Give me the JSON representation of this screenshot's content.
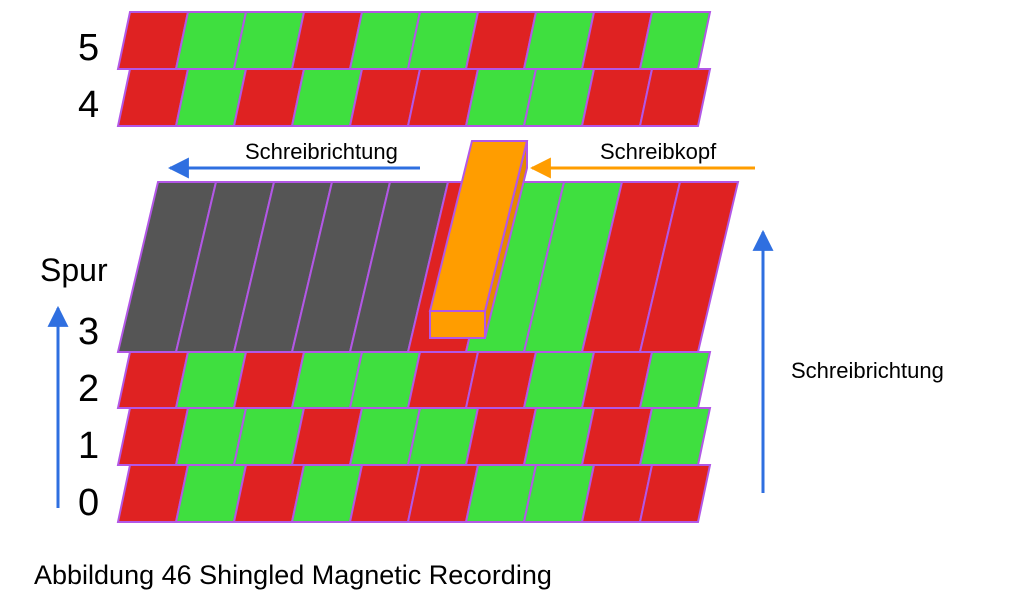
{
  "colors": {
    "bit_red": "#df2222",
    "bit_green": "#3fdf3f",
    "bit_written": "#555555",
    "bit_border": "#b257e6",
    "head_fill": "#ff9d00",
    "head_border": "#b257e6",
    "arrow_blue": "#2f6fe0",
    "arrow_orange": "#ff9d00"
  },
  "track_labels": [
    "0",
    "1",
    "2",
    "3",
    "4",
    "5"
  ],
  "axis_label": "Spur",
  "write_direction_label": "Schreibrichtung",
  "write_head_label": "Schreibkopf",
  "write_direction_label_right": "Schreibrichtung",
  "caption": "Abbildung 46 Shingled Magnetic Recording",
  "tracks": [
    {
      "track": "0",
      "bits": [
        "r",
        "g",
        "r",
        "g",
        "r",
        "r",
        "g",
        "g",
        "r",
        "r"
      ]
    },
    {
      "track": "1",
      "bits": [
        "r",
        "g",
        "g",
        "r",
        "g",
        "g",
        "r",
        "g",
        "r",
        "g"
      ]
    },
    {
      "track": "2",
      "bits": [
        "r",
        "g",
        "r",
        "g",
        "g",
        "r",
        "r",
        "g",
        "r",
        "g"
      ]
    },
    {
      "track": "3",
      "bits": [
        "w",
        "w",
        "w",
        "w",
        "w",
        "r",
        "g",
        "g",
        "r",
        "r"
      ]
    },
    {
      "track": "4",
      "bits": [
        "r",
        "g",
        "r",
        "g",
        "r",
        "r",
        "g",
        "g",
        "r",
        "r"
      ]
    },
    {
      "track": "5",
      "bits": [
        "r",
        "g",
        "g",
        "r",
        "g",
        "g",
        "r",
        "g",
        "r",
        "g"
      ]
    }
  ]
}
